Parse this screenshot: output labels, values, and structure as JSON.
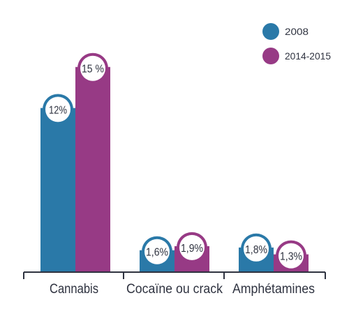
{
  "chart_data": {
    "type": "bar",
    "categories": [
      "Cannabis",
      "Cocaïne ou crack",
      "Amphétamines"
    ],
    "series": [
      {
        "name": "2008",
        "color": "#2a79a8",
        "values": [
          12,
          1.6,
          1.8
        ],
        "labels": [
          "12%",
          "1,6%",
          "1,8%"
        ]
      },
      {
        "name": "2014-2015",
        "color": "#973a85",
        "values": [
          15,
          1.9,
          1.3
        ],
        "labels": [
          "15 %",
          "1,9%",
          "1,3%"
        ]
      }
    ],
    "title": "",
    "xlabel": "",
    "ylabel": "",
    "ylim": [
      0,
      15.6
    ],
    "grid": false,
    "legend": "top-right"
  }
}
